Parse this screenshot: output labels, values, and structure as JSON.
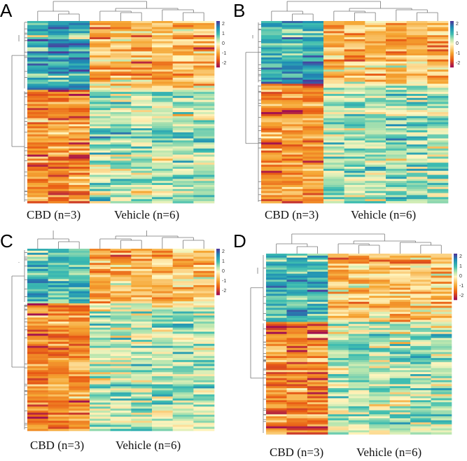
{
  "chart_data": [
    {
      "type": "heatmap",
      "panel": "A",
      "groups": [
        {
          "label": "CBD (n=3)",
          "columns": 3
        },
        {
          "label": "Vehicle (n=6)",
          "columns": 6
        }
      ],
      "colorbar": {
        "range": [
          -2,
          2
        ],
        "ticks": [
          "2",
          "1",
          "0",
          "-1",
          "-2"
        ]
      },
      "row_clusters": [
        {
          "fraction": 0.38,
          "cbd_mean": 1.1,
          "vehicle_mean": -0.6
        },
        {
          "fraction": 0.62,
          "cbd_mean": -1.0,
          "vehicle_mean": 0.4
        }
      ]
    },
    {
      "type": "heatmap",
      "panel": "B",
      "groups": [
        {
          "label": "CBD (n=3)",
          "columns": 3
        },
        {
          "label": "Vehicle (n=6)",
          "columns": 6
        }
      ],
      "colorbar": {
        "range": [
          -2,
          2
        ],
        "ticks": [
          "2",
          "1",
          "0",
          "-1",
          "-2"
        ]
      },
      "row_clusters": [
        {
          "fraction": 0.35,
          "cbd_mean": 1.1,
          "vehicle_mean": -0.6
        },
        {
          "fraction": 0.65,
          "cbd_mean": -1.0,
          "vehicle_mean": 0.4
        }
      ]
    },
    {
      "type": "heatmap",
      "panel": "C",
      "groups": [
        {
          "label": "CBD (n=3)",
          "columns": 3
        },
        {
          "label": "Vehicle (n=6)",
          "columns": 6
        }
      ],
      "colorbar": {
        "range": [
          -2,
          2
        ],
        "ticks": [
          "2",
          "1",
          "0",
          "-1",
          "-2"
        ]
      },
      "row_clusters": [
        {
          "fraction": 0.3,
          "cbd_mean": 0.9,
          "vehicle_mean": -0.5
        },
        {
          "fraction": 0.7,
          "cbd_mean": -1.0,
          "vehicle_mean": 0.4
        }
      ]
    },
    {
      "type": "heatmap",
      "panel": "D",
      "groups": [
        {
          "label": "CBD (n=3)",
          "columns": 3
        },
        {
          "label": "Vehicle (n=6)",
          "columns": 6
        }
      ],
      "colorbar": {
        "range": [
          -2,
          2
        ],
        "ticks": [
          "2",
          "1",
          "0",
          "-1",
          "-2"
        ]
      },
      "row_clusters": [
        {
          "fraction": 0.38,
          "cbd_mean": 1.0,
          "vehicle_mean": -0.5
        },
        {
          "fraction": 0.62,
          "cbd_mean": -1.0,
          "vehicle_mean": 0.4
        }
      ]
    }
  ],
  "colors": {
    "low": "#a3114f",
    "mid_low": "#f08a1c",
    "mid": "#fff6c0",
    "mid_high": "#3cbdb0",
    "high": "#4a3c9c"
  }
}
